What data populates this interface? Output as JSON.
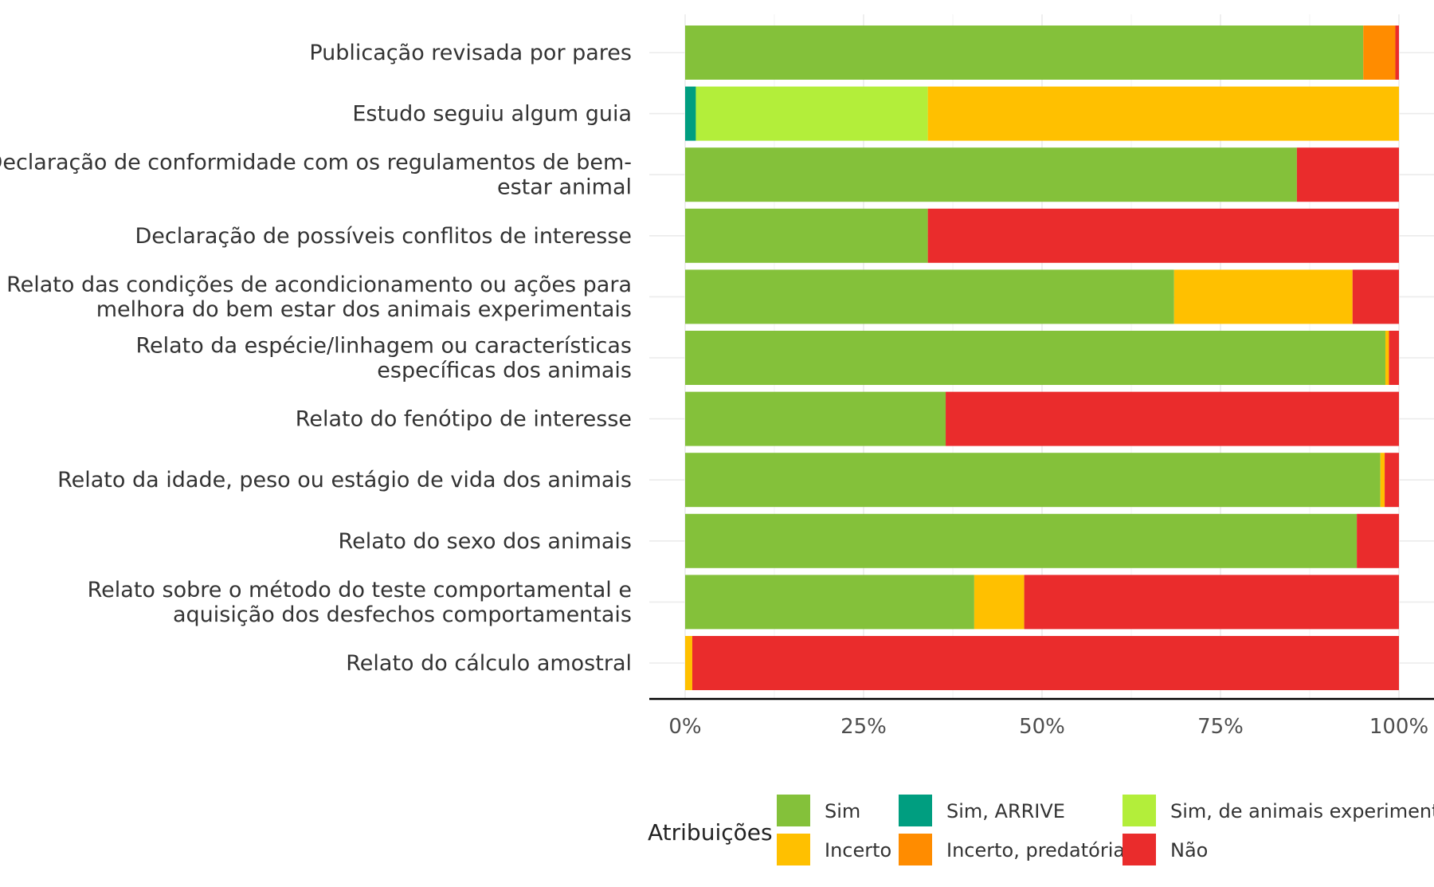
{
  "chart_data": {
    "type": "bar",
    "orientation": "horizontal",
    "stacked": true,
    "categories": [
      [
        "Publicação revisada por pares"
      ],
      [
        "Estudo seguiu algum guia"
      ],
      [
        "Declaração de conformidade com os regulamentos de bem-",
        "estar animal"
      ],
      [
        "Declaração de possíveis conflitos de interesse"
      ],
      [
        "Relato das condições de acondicionamento ou ações para",
        "melhora do bem estar dos animais experimentais"
      ],
      [
        "Relato da espécie/linhagem ou características",
        "específicas dos animais"
      ],
      [
        "Relato do fenótipo de interesse"
      ],
      [
        "Relato da idade, peso ou estágio de vida dos animais"
      ],
      [
        "Relato do sexo dos animais"
      ],
      [
        "Relato sobre o método do teste comportamental e",
        "aquisição dos desfechos comportamentais"
      ],
      [
        "Relato do cálculo amostral"
      ]
    ],
    "series": [
      {
        "name": "Sim",
        "color": "#84C13A",
        "values": [
          95,
          0,
          85.7,
          34,
          68.5,
          98.1,
          36.5,
          97.4,
          94.1,
          40.5,
          0
        ]
      },
      {
        "name": "Sim, ARRIVE",
        "color": "#009E80",
        "values": [
          0,
          1.5,
          0,
          0,
          0,
          0,
          0,
          0,
          0,
          0,
          0
        ]
      },
      {
        "name": "Sim, de animais experimentais",
        "color": "#B3EE3A",
        "values": [
          0,
          32.5,
          0,
          0,
          0,
          0,
          0,
          0,
          0,
          0,
          0
        ]
      },
      {
        "name": "Incerto",
        "color": "#FFC000",
        "values": [
          0,
          66,
          0,
          0,
          25,
          0.5,
          0,
          0.6,
          0,
          7,
          1
        ]
      },
      {
        "name": "Incerto, predatória",
        "color": "#FF8C00",
        "values": [
          4.5,
          0,
          0,
          0,
          0,
          0,
          0,
          0,
          0,
          0,
          0
        ]
      },
      {
        "name": "Não",
        "color": "#EA2C2C",
        "values": [
          0.5,
          0,
          14.3,
          66,
          6.5,
          1.4,
          63.5,
          2,
          5.9,
          52.5,
          99
        ]
      }
    ],
    "xlim": [
      0,
      100
    ],
    "xticks": [
      "0%",
      "25%",
      "50%",
      "75%",
      "100%"
    ],
    "xlabel": "",
    "ylabel": "",
    "grid": true,
    "legend": {
      "title": "Atribuições",
      "position": "bottom",
      "rows": [
        [
          "Sim",
          "Sim, ARRIVE",
          "Sim, de animais experimentais"
        ],
        [
          "Incerto",
          "Incerto, predatória",
          "Não"
        ]
      ]
    }
  }
}
